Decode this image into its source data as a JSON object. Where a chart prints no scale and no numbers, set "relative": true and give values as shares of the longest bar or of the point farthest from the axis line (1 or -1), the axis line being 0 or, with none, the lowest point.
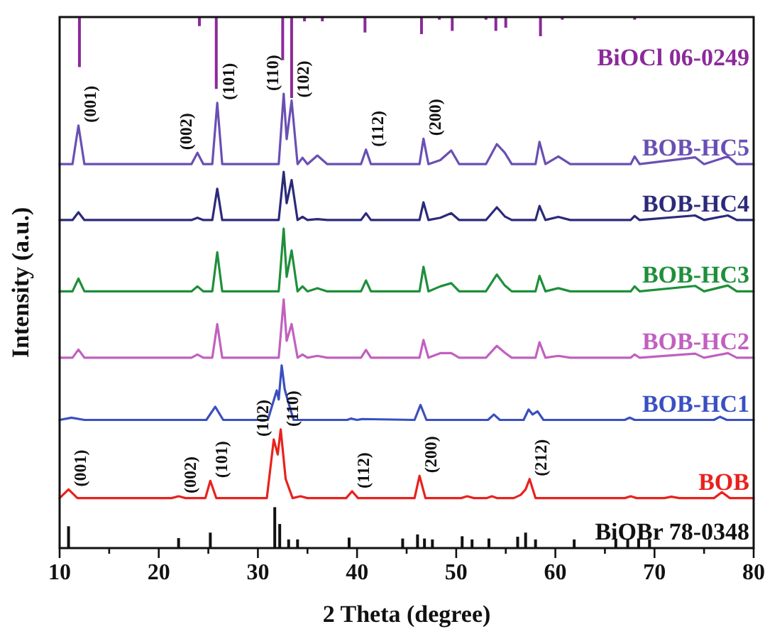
{
  "chart_data": [
    {
      "type": "bar",
      "relative": true,
      "xlim": [
        10,
        80
      ],
      "series": [
        {
          "name": "BiOCl 06-0249",
          "color": "#8b2a9a",
          "x": [
            12,
            24.1,
            25.8,
            32.5,
            33.4,
            34.7,
            36.5,
            40.8,
            46.5,
            48.3,
            49.6,
            53,
            54,
            55,
            58.5,
            60.7,
            68
          ],
          "values": [
            -0.618,
            -0.112,
            -0.888,
            -0.533,
            -1,
            -0.053,
            -0.053,
            -0.191,
            -0.211,
            -0.033,
            -0.171,
            -0.033,
            -0.171,
            -0.132,
            -0.237,
            -0.033,
            -0.033
          ]
        }
      ]
    },
    {
      "type": "line",
      "relative": true,
      "xlabel": "2 Theta (degree)",
      "ylabel": "Intensity (a.u.)",
      "xlim": [
        10,
        80
      ],
      "xticks": [
        10,
        {
          "value": 15,
          "label": null
        },
        20,
        {
          "value": 25,
          "label": null
        },
        30,
        {
          "value": 35,
          "label": null
        },
        40,
        {
          "value": 45,
          "label": null
        },
        50,
        {
          "value": 55,
          "label": null
        },
        60,
        {
          "value": 65,
          "label": null
        },
        70,
        {
          "value": 75,
          "label": null
        },
        80
      ],
      "x": [
        10,
        11.3,
        11.9,
        12.5,
        23.3,
        23.9,
        24.5,
        25.4,
        25.9,
        26.4,
        32.1,
        32.6,
        32.9,
        33.4,
        34,
        34.5,
        35,
        36,
        37,
        40.4,
        40.9,
        41.4,
        46.3,
        46.7,
        47.2,
        48.4,
        49.5,
        50.3,
        53,
        54.1,
        54.9,
        55.6,
        58,
        58.4,
        59,
        60.3,
        61.5,
        67.6,
        68,
        68.5,
        74.1,
        75,
        77.4,
        78.3,
        80
      ],
      "series": [
        {
          "name": "BOB-HC5",
          "color": "#6a4fb3",
          "values": [
            0.845,
            0.845,
            0.93,
            0.845,
            0.845,
            0.87,
            0.845,
            0.845,
            0.98,
            0.845,
            0.845,
            1,
            0.9,
            0.985,
            0.845,
            0.859,
            0.845,
            0.864,
            0.845,
            0.845,
            0.877,
            0.845,
            0.845,
            0.901,
            0.845,
            0.854,
            0.875,
            0.845,
            0.845,
            0.889,
            0.87,
            0.845,
            0.845,
            0.894,
            0.845,
            0.862,
            0.845,
            0.845,
            0.862,
            0.845,
            0.86,
            0.845,
            0.862,
            0.845,
            0.845
          ]
        },
        {
          "name": "BOB-HC4",
          "color": "#2b2a7a",
          "values": [
            0.722,
            0.722,
            0.739,
            0.722,
            0.722,
            0.727,
            0.722,
            0.722,
            0.791,
            0.722,
            0.722,
            0.828,
            0.759,
            0.81,
            0.722,
            0.729,
            0.722,
            0.724,
            0.722,
            0.722,
            0.737,
            0.722,
            0.722,
            0.761,
            0.722,
            0.727,
            0.737,
            0.722,
            0.722,
            0.75,
            0.73,
            0.722,
            0.722,
            0.753,
            0.722,
            0.729,
            0.722,
            0.722,
            0.731,
            0.722,
            0.732,
            0.722,
            0.732,
            0.722,
            0.722
          ]
        },
        {
          "name": "BOB-HC3",
          "color": "#1f8f3a",
          "values": [
            0.565,
            0.565,
            0.593,
            0.565,
            0.565,
            0.576,
            0.565,
            0.565,
            0.651,
            0.565,
            0.565,
            0.703,
            0.597,
            0.655,
            0.565,
            0.576,
            0.565,
            0.572,
            0.565,
            0.565,
            0.589,
            0.565,
            0.565,
            0.619,
            0.565,
            0.576,
            0.583,
            0.565,
            0.565,
            0.602,
            0.578,
            0.565,
            0.565,
            0.599,
            0.565,
            0.572,
            0.565,
            0.565,
            0.576,
            0.565,
            0.577,
            0.565,
            0.578,
            0.565,
            0.565
          ]
        },
        {
          "name": "BOB-HC2",
          "color": "#c160c0",
          "values": [
            0.419,
            0.419,
            0.437,
            0.419,
            0.419,
            0.426,
            0.419,
            0.419,
            0.493,
            0.419,
            0.419,
            0.547,
            0.456,
            0.493,
            0.419,
            0.426,
            0.419,
            0.423,
            0.419,
            0.419,
            0.436,
            0.419,
            0.419,
            0.458,
            0.419,
            0.429,
            0.429,
            0.419,
            0.419,
            0.445,
            0.43,
            0.419,
            0.419,
            0.453,
            0.419,
            0.423,
            0.419,
            0.419,
            0.426,
            0.419,
            0.428,
            0.419,
            0.429,
            0.419,
            0.419
          ]
        },
        {
          "name": "BOB-HC1",
          "color": "#3a50c0",
          "x": [
            10,
            11.2,
            12.5,
            24.8,
            25.7,
            26.5,
            31,
            31.9,
            32.1,
            32.4,
            32.7,
            33,
            33.6,
            39,
            39.4,
            40,
            40.5,
            45.8,
            46.4,
            47,
            53.2,
            53.8,
            54.4,
            56.8,
            57.3,
            57.7,
            58.2,
            58.8,
            67,
            67.5,
            68,
            76,
            76.6,
            77.3,
            80
          ],
          "values": [
            0.282,
            0.287,
            0.282,
            0.282,
            0.311,
            0.282,
            0.282,
            0.347,
            0.327,
            0.402,
            0.35,
            0.326,
            0.282,
            0.282,
            0.285,
            0.282,
            0.284,
            0.282,
            0.315,
            0.282,
            0.282,
            0.294,
            0.282,
            0.282,
            0.305,
            0.294,
            0.301,
            0.282,
            0.282,
            0.287,
            0.282,
            0.282,
            0.289,
            0.282,
            0.282
          ]
        },
        {
          "name": "BOB",
          "color": "#e8221e",
          "x": [
            10,
            10.9,
            11.8,
            21.3,
            22,
            22.7,
            24.7,
            25.2,
            25.8,
            30.9,
            31.6,
            32,
            32.3,
            32.8,
            33.5,
            34.3,
            35,
            38.9,
            39.5,
            40.1,
            45.8,
            46.3,
            46.9,
            50.5,
            51.1,
            51.8,
            53.1,
            53.6,
            54.1,
            55.8,
            56.5,
            57,
            57.4,
            58,
            67,
            67.6,
            68.2,
            71,
            71.7,
            72.5,
            76,
            76.8,
            77.6,
            80
          ],
          "values": [
            0.11,
            0.129,
            0.11,
            0.11,
            0.114,
            0.11,
            0.11,
            0.148,
            0.11,
            0.11,
            0.239,
            0.206,
            0.261,
            0.152,
            0.11,
            0.114,
            0.11,
            0.11,
            0.125,
            0.11,
            0.11,
            0.159,
            0.11,
            0.11,
            0.114,
            0.11,
            0.11,
            0.114,
            0.11,
            0.11,
            0.117,
            0.129,
            0.152,
            0.11,
            0.11,
            0.114,
            0.11,
            0.11,
            0.113,
            0.11,
            0.11,
            0.123,
            0.11,
            0.11
          ]
        },
        {
          "name": "BiOBr 78-0348",
          "type": "bar",
          "color": "#111111",
          "x": [
            10.9,
            22,
            25.2,
            31.7,
            32.2,
            33.1,
            34,
            39.2,
            44.6,
            46.1,
            46.8,
            47.6,
            50.6,
            51.6,
            53.3,
            56.2,
            57,
            58,
            61.9,
            66.1,
            67.3,
            68.4,
            69.5
          ],
          "values": [
            0.048,
            0.022,
            0.034,
            0.09,
            0.053,
            0.019,
            0.019,
            0.023,
            0.021,
            0.03,
            0.021,
            0.019,
            0.026,
            0.019,
            0.021,
            0.025,
            0.034,
            0.019,
            0.019,
            0.019,
            0.019,
            0.019,
            0.019
          ]
        }
      ],
      "annotations": [
        {
          "text": "(001)",
          "x": 11.9,
          "y": 0.93
        },
        {
          "text": "(002)",
          "x": 23.9,
          "y": 0.87
        },
        {
          "text": "(101)",
          "x": 25.9,
          "y": 0.98
        },
        {
          "text": "(110)",
          "x": 32.6,
          "y": 1
        },
        {
          "text": "(102)",
          "x": 33.4,
          "y": 0.985
        },
        {
          "text": "(112)",
          "x": 40.9,
          "y": 0.877
        },
        {
          "text": "(200)",
          "x": 46.7,
          "y": 0.901
        },
        {
          "text": "(001)",
          "x": 10.9,
          "y": 0.129
        },
        {
          "text": "(002)",
          "x": 22,
          "y": 0.114
        },
        {
          "text": "(101)",
          "x": 25.2,
          "y": 0.148
        },
        {
          "text": "(102)",
          "x": 31.6,
          "y": 0.239
        },
        {
          "text": "(110)",
          "x": 32.3,
          "y": 0.261
        },
        {
          "text": "(112)",
          "x": 39.5,
          "y": 0.125
        },
        {
          "text": "(200)",
          "x": 46.3,
          "y": 0.159
        },
        {
          "text": "(212)",
          "x": 57.4,
          "y": 0.152
        }
      ]
    }
  ]
}
